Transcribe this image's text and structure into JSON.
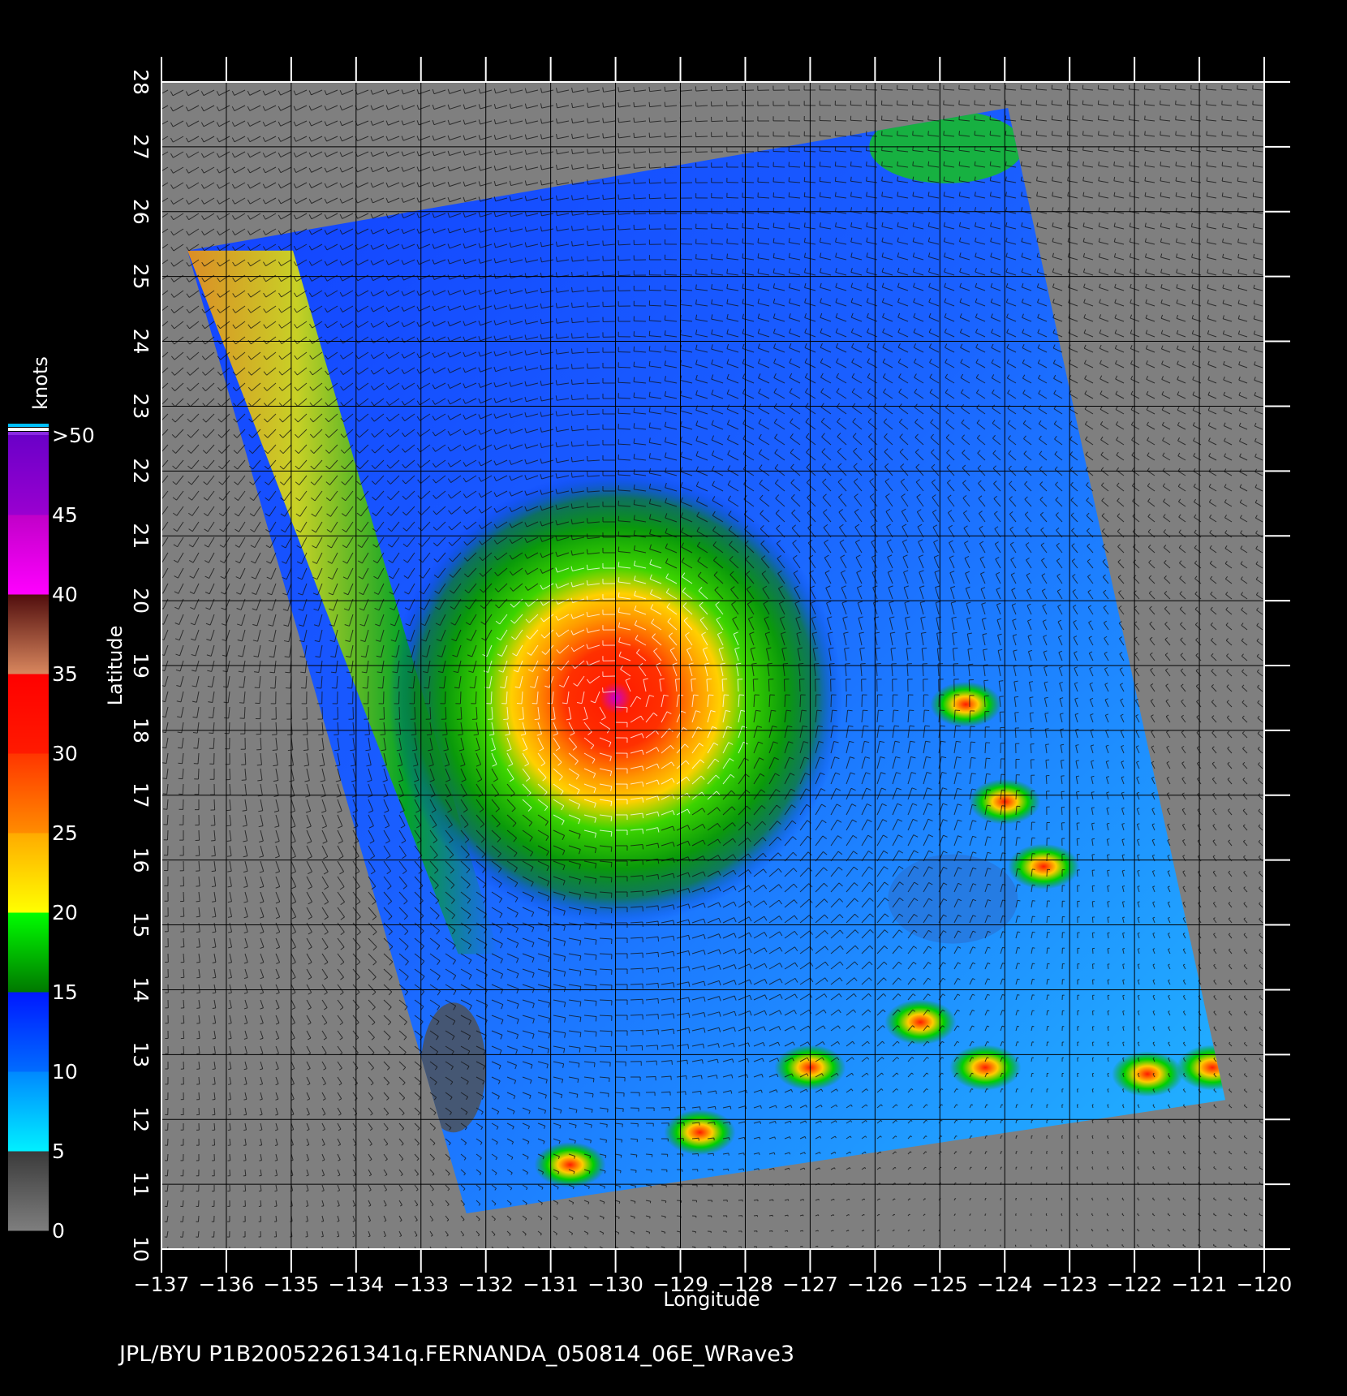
{
  "map": {
    "x_axis_label": "Longitude",
    "y_axis_label": "Latitude",
    "footer": "JPL/BYU  P1B20052261341q.FERNANDA_050814_06E_WRave3",
    "longitude_range": [
      -137,
      -120
    ],
    "latitude_range": [
      10,
      28
    ],
    "longitude_ticks": [
      "−137",
      "−136",
      "−135",
      "−134",
      "−133",
      "−132",
      "−131",
      "−130",
      "−129",
      "−128",
      "−127",
      "−126",
      "−125",
      "−124",
      "−123",
      "−122",
      "−121",
      "−120"
    ],
    "latitude_ticks": [
      "10",
      "11",
      "12",
      "13",
      "14",
      "15",
      "16",
      "17",
      "18",
      "19",
      "20",
      "21",
      "22",
      "23",
      "24",
      "25",
      "26",
      "27",
      "28"
    ],
    "storm": "FERNANDA",
    "storm_center": {
      "lon": -130.0,
      "lat": 18.5
    },
    "swath_corners": [
      {
        "lon": -136.6,
        "lat": 25.4
      },
      {
        "lon": -123.95,
        "lat": 27.6
      },
      {
        "lon": -120.6,
        "lat": 12.3
      },
      {
        "lon": -132.3,
        "lat": 10.55
      }
    ],
    "rain_cells": [
      {
        "lon": -124.6,
        "lat": 18.4
      },
      {
        "lon": -124.0,
        "lat": 16.9
      },
      {
        "lon": -123.4,
        "lat": 15.9
      },
      {
        "lon": -125.3,
        "lat": 13.5
      },
      {
        "lon": -127.0,
        "lat": 12.8
      },
      {
        "lon": -128.7,
        "lat": 11.8
      },
      {
        "lon": -124.3,
        "lat": 12.8
      },
      {
        "lon": -121.8,
        "lat": 12.7
      },
      {
        "lon": -120.8,
        "lat": 12.8
      },
      {
        "lon": -130.7,
        "lat": 11.3
      }
    ],
    "colors": {
      "background": "#000000",
      "land_no_data": "#7f7f7f",
      "grid": "#000000",
      "wind_barb": "#111111",
      "rain_flag_barb": "#ffffff"
    }
  },
  "colorbar": {
    "unit_label": "knots",
    "labels": [
      "0",
      "5",
      "10",
      "15",
      "20",
      "25",
      "30",
      "35",
      "40",
      "45",
      ">50"
    ],
    "bands": [
      {
        "from": 0,
        "to": 5,
        "top": "#3a3a3a",
        "bottom": "#7e7e7e"
      },
      {
        "from": 5,
        "to": 10,
        "top": "#0088ff",
        "bottom": "#00f0ff"
      },
      {
        "from": 10,
        "to": 15,
        "top": "#0018ff",
        "bottom": "#006cff"
      },
      {
        "from": 15,
        "to": 20,
        "top": "#00ff00",
        "bottom": "#007800"
      },
      {
        "from": 20,
        "to": 25,
        "top": "#ffaa00",
        "bottom": "#ffff00"
      },
      {
        "from": 25,
        "to": 30,
        "top": "#ff3500",
        "bottom": "#ff8c00"
      },
      {
        "from": 30,
        "to": 35,
        "top": "#ff0000",
        "bottom": "#ff1a00"
      },
      {
        "from": 35,
        "to": 40,
        "top": "#500d0d",
        "bottom": "#d9875e"
      },
      {
        "from": 40,
        "to": 45,
        "top": "#c000c8",
        "bottom": "#ff00ff"
      },
      {
        "from": 45,
        "to": 50,
        "top": "#6a00c8",
        "bottom": "#9a00d0"
      }
    ],
    "overflow_colors": [
      "#8a2be2",
      "#ffffff",
      "#00c0ff"
    ]
  }
}
